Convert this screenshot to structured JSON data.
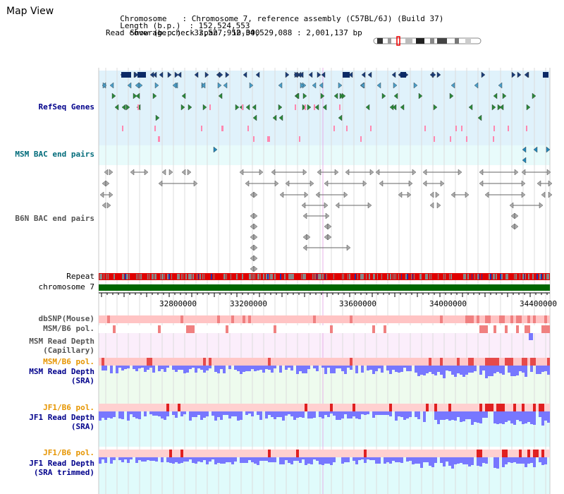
{
  "header": {
    "title": "Map View",
    "chromosome_key": "Chromosome",
    "chromosome_value": ": Chromosome 7, reference assembly (C57BL/6J) (Build 37)",
    "length_key": "Length (b.p.)",
    "length_value": ": 152,524,553",
    "show_key": "Show (b.p.)",
    "show_value": ": 32,527,952-34,529,088 : 2,001,137 bp",
    "coverage_line": "Read coverage check span : 10,000"
  },
  "tracks": {
    "refseq": "RefSeq Genes",
    "msm_bac": "MSM BAC end pairs",
    "b6n_bac": "B6N BAC end pairs",
    "repeat": "Repeat",
    "chromosome": "chromosome 7",
    "dbsnp": "dbSNP(Mouse)",
    "msm_b6_pol_1": "MSM/B6 pol.",
    "msm_depth_cap_1": "MSM Read Depth",
    "msm_depth_cap_2": "(Capillary)",
    "msm_b6_pol_2": "MSM/B6 pol.",
    "msm_depth_sra_1": "MSM Read Depth",
    "msm_depth_sra_2": "(SRA)",
    "jf1_b6_pol_1": "JF1/B6 pol.",
    "jf1_depth_sra_1": "JF1 Read Depth",
    "jf1_depth_sra_2": "(SRA)",
    "jf1_b6_pol_2": "JF1/B6 pol.",
    "jf1_depth_trim_1": "JF1 Read Depth",
    "jf1_depth_trim_2": "(SRA trimmed)"
  },
  "scale": {
    "ticks": [
      "32800000",
      "33200000",
      "33600000",
      "34000000",
      "34400000"
    ]
  },
  "colors": {
    "refseq_band": "#e0f2fb",
    "bac_band": "#e8fbfb",
    "snp_pink": "#ffb9b9",
    "repeat_red": "#e00000",
    "chromosome_green": "#006600",
    "depth_blue": "#7777ff",
    "cap_band": "#fbeefb",
    "msm_sra_band": "#eefbee",
    "jf1_band": "#e0fbfb"
  }
}
